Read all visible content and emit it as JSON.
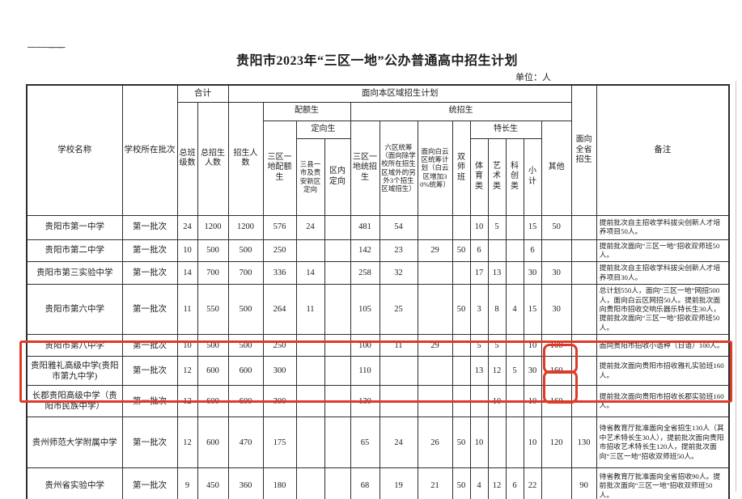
{
  "page": {
    "title": "贵阳市2023年“三区一地”公办普通高中招生计划",
    "unit_label": "单位：人",
    "redaction_marks": "·· ·· ——"
  },
  "colors": {
    "annotation_red": "#dd3a28",
    "table_border": "#2e2e2e",
    "text": "#1c1c1c"
  },
  "annotations": {
    "highlighted_schools": [
      "贵阳雅礼高级中学(贵阳市第九中学)",
      "长郡贵阳高级中学（贵阳市民族中学）"
    ],
    "circled_values": [
      "160",
      "160"
    ]
  },
  "table": {
    "headers": {
      "school_name": "学校名称",
      "batch": "学校所在批次",
      "total": "合计",
      "total_classes": "总班级数",
      "total_students": "总招生人数",
      "regional_plan": "面向本区域招生计划",
      "enroll_count": "招生人数",
      "quota": "配额生",
      "quota_3q1d": "三区一地配额生",
      "directed": "定向生",
      "directed_counties": "三县一市及贵安新区定向",
      "directed_district": "区内定向",
      "unified": "统招生",
      "unified_3q1d": "三区一地统招生",
      "six_district": "六区统筹（面向除学校所在招生区域外的另外3个招生区域招生）",
      "baiyun": "面向白云区统筹计划（白云区增加30%统筹）",
      "dual_teacher": "双师班",
      "special": "特长生",
      "sports": "体育类",
      "arts": "艺术类",
      "scitech": "科创类",
      "subtotal": "小计",
      "other": "其他",
      "province": "面向全省招生",
      "remark": "备注"
    },
    "rows": [
      [
        "贵阳市第一中学",
        "第一批次",
        "24",
        "1200",
        "1200",
        "576",
        "24",
        "",
        "481",
        "54",
        "",
        "",
        "10",
        "5",
        "",
        "15",
        "50",
        "",
        "提前批次自主招收学科拔尖创新人才培养项目50人。"
      ],
      [
        "贵阳市第二中学",
        "第一批次",
        "10",
        "500",
        "500",
        "250",
        "",
        "",
        "142",
        "23",
        "29",
        "50",
        "6",
        "",
        "",
        "6",
        "",
        "",
        "提前批次面向“三区一地”招收双师班50人。"
      ],
      [
        "贵阳市第三实验中学",
        "第一批次",
        "14",
        "700",
        "700",
        "336",
        "14",
        "",
        "258",
        "32",
        "",
        "",
        "17",
        "13",
        "",
        "30",
        "30",
        "",
        "提前批次自主招收学科拔尖创新人才培养项目30人。"
      ],
      [
        "贵阳市第六中学",
        "第一批次",
        "11",
        "550",
        "500",
        "264",
        "11",
        "",
        "105",
        "25",
        "",
        "50",
        "3",
        "8",
        "4",
        "15",
        "30",
        "",
        "总计划550人，面向“三区一地”网招500人，面向白云区网招50人。提前批次面向贵阳市招收交响乐器乐特长生30人，提前批次面向“三区一地”招收双师班50人。"
      ],
      [
        "贵阳市第八中学",
        "第一批次",
        "10",
        "500",
        "500",
        "250",
        "",
        "",
        "100",
        "11",
        "29",
        "",
        "5",
        "5",
        "",
        "10",
        "100",
        "",
        "面向贵阳市招收小语种（日语）100人。"
      ],
      [
        "贵阳雅礼高级中学(贵阳市第九中学)",
        "第一批次",
        "12",
        "600",
        "600",
        "300",
        "",
        "",
        "110",
        "",
        "",
        "",
        "13",
        "12",
        "5",
        "30",
        "160",
        "",
        "提前批次面向贵阳市招收雅礼实验班160人。"
      ],
      [
        "长郡贵阳高级中学（贵阳市民族中学）",
        "第一批次",
        "12",
        "600",
        "600",
        "300",
        "",
        "",
        "130",
        "",
        "",
        "",
        "",
        "10",
        "",
        "10",
        "160",
        "",
        "提前批次面向贵阳市招收长郡实验班160人。"
      ],
      [
        "贵州师范大学附属中学",
        "第一批次",
        "12",
        "600",
        "470",
        "175",
        "",
        "",
        "65",
        "24",
        "26",
        "50",
        "10",
        "",
        "",
        "10",
        "120",
        "130",
        "待省教育厅批准面向全省招生130人（其中艺术特长生30人），提前批次面向贵阳市招收艺术特长生120人，提前批次面向“三区一地”招收双师班50人。"
      ],
      [
        "贵州省实验中学",
        "第一批次",
        "9",
        "450",
        "360",
        "180",
        "",
        "",
        "68",
        "19",
        "21",
        "50",
        "4",
        "12",
        "6",
        "22",
        "",
        "90",
        "待省教育厅批准面向全省招收90人。提前批次面向“三区一地”招收双师班50人。"
      ]
    ]
  }
}
